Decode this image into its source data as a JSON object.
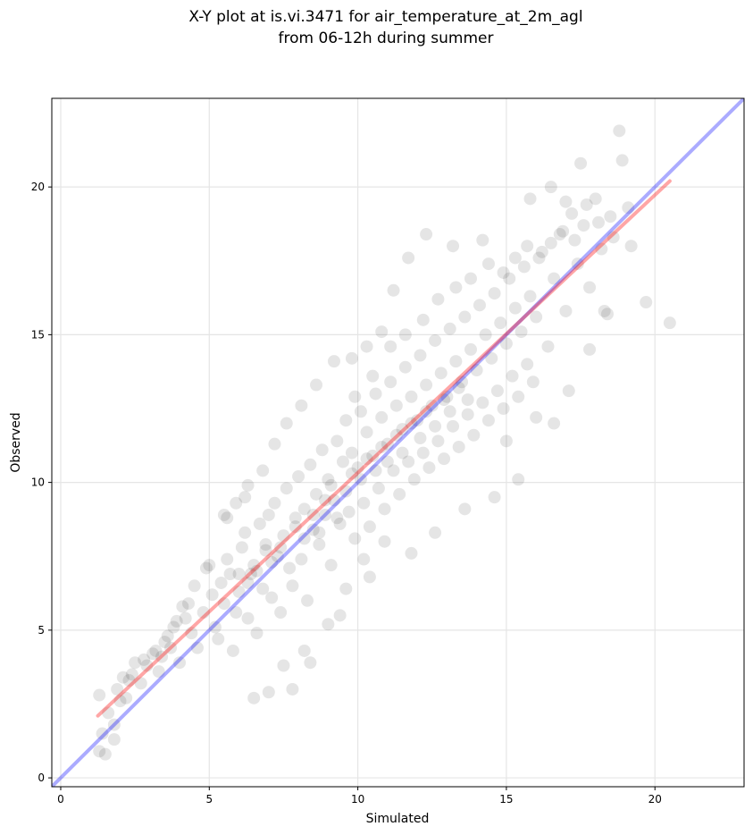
{
  "chart_data": {
    "type": "scatter",
    "title": [
      "X-Y plot at is.vi.3471 for air_temperature_at_2m_agl",
      "from 06-12h during summer"
    ],
    "xlabel": "Simulated",
    "ylabel": "Observed",
    "xlim": [
      -0.3,
      23.0
    ],
    "ylim": [
      -0.3,
      23.0
    ],
    "xticks": [
      0,
      5,
      10,
      15,
      20
    ],
    "yticks": [
      0,
      5,
      10,
      15,
      20
    ],
    "grid": true,
    "legend": "none",
    "point_color": "#000000",
    "point_opacity": 0.1,
    "points": [
      [
        1.3,
        0.9
      ],
      [
        1.4,
        1.5
      ],
      [
        1.5,
        0.8
      ],
      [
        1.8,
        1.3
      ],
      [
        1.3,
        2.8
      ],
      [
        1.6,
        2.2
      ],
      [
        1.9,
        3.0
      ],
      [
        2.2,
        2.7
      ],
      [
        2.3,
        3.3
      ],
      [
        2.5,
        3.9
      ],
      [
        2.4,
        3.5
      ],
      [
        2.7,
        3.2
      ],
      [
        2.9,
        3.8
      ],
      [
        3.1,
        4.2
      ],
      [
        3.3,
        3.6
      ],
      [
        3.5,
        4.6
      ],
      [
        3.4,
        4.1
      ],
      [
        3.7,
        4.4
      ],
      [
        3.9,
        5.3
      ],
      [
        4.0,
        3.9
      ],
      [
        4.1,
        5.8
      ],
      [
        4.2,
        5.4
      ],
      [
        4.4,
        4.9
      ],
      [
        4.6,
        4.4
      ],
      [
        4.8,
        5.6
      ],
      [
        5.0,
        7.2
      ],
      [
        5.1,
        6.2
      ],
      [
        5.2,
        5.1
      ],
      [
        5.3,
        4.7
      ],
      [
        5.4,
        6.6
      ],
      [
        5.5,
        5.9
      ],
      [
        5.6,
        7.4
      ],
      [
        5.7,
        6.9
      ],
      [
        5.8,
        4.3
      ],
      [
        5.9,
        5.6
      ],
      [
        6.0,
        6.3
      ],
      [
        6.1,
        7.8
      ],
      [
        6.2,
        8.3
      ],
      [
        6.3,
        5.4
      ],
      [
        6.4,
        6.9
      ],
      [
        6.5,
        7.2
      ],
      [
        6.6,
        4.9
      ],
      [
        6.7,
        8.6
      ],
      [
        6.8,
        6.4
      ],
      [
        6.9,
        7.7
      ],
      [
        7.0,
        8.9
      ],
      [
        7.1,
        6.1
      ],
      [
        7.2,
        9.3
      ],
      [
        7.3,
        7.5
      ],
      [
        7.4,
        5.6
      ],
      [
        7.5,
        8.2
      ],
      [
        7.6,
        9.8
      ],
      [
        7.7,
        7.1
      ],
      [
        7.8,
        6.5
      ],
      [
        7.9,
        8.8
      ],
      [
        8.0,
        10.2
      ],
      [
        8.1,
        7.4
      ],
      [
        8.2,
        9.1
      ],
      [
        8.3,
        6.0
      ],
      [
        8.4,
        10.6
      ],
      [
        8.5,
        8.4
      ],
      [
        8.6,
        9.6
      ],
      [
        8.7,
        7.9
      ],
      [
        8.8,
        11.1
      ],
      [
        8.9,
        8.9
      ],
      [
        9.0,
        10.1
      ],
      [
        9.1,
        7.2
      ],
      [
        9.2,
        9.4
      ],
      [
        9.3,
        11.4
      ],
      [
        9.4,
        8.6
      ],
      [
        9.5,
        10.7
      ],
      [
        9.6,
        12.1
      ],
      [
        9.7,
        9.0
      ],
      [
        9.8,
        11.0
      ],
      [
        9.9,
        8.1
      ],
      [
        10.0,
        10.5
      ],
      [
        10.1,
        12.4
      ],
      [
        10.2,
        9.3
      ],
      [
        10.3,
        11.7
      ],
      [
        10.4,
        8.5
      ],
      [
        10.5,
        10.9
      ],
      [
        10.6,
        13.0
      ],
      [
        10.7,
        9.8
      ],
      [
        10.8,
        12.2
      ],
      [
        10.9,
        9.1
      ],
      [
        11.0,
        11.3
      ],
      [
        11.1,
        13.4
      ],
      [
        11.2,
        10.4
      ],
      [
        11.3,
        12.6
      ],
      [
        11.4,
        9.6
      ],
      [
        11.5,
        11.8
      ],
      [
        11.6,
        13.9
      ],
      [
        11.7,
        10.7
      ],
      [
        11.8,
        12.9
      ],
      [
        11.9,
        10.1
      ],
      [
        12.0,
        12.1
      ],
      [
        12.1,
        14.3
      ],
      [
        12.2,
        11.0
      ],
      [
        12.3,
        13.3
      ],
      [
        12.4,
        10.5
      ],
      [
        12.5,
        12.6
      ],
      [
        12.6,
        14.8
      ],
      [
        12.7,
        11.4
      ],
      [
        12.8,
        13.7
      ],
      [
        12.9,
        10.8
      ],
      [
        13.0,
        12.9
      ],
      [
        13.1,
        15.2
      ],
      [
        13.2,
        11.9
      ],
      [
        13.3,
        14.1
      ],
      [
        13.4,
        11.2
      ],
      [
        13.5,
        13.4
      ],
      [
        13.6,
        15.6
      ],
      [
        13.7,
        12.3
      ],
      [
        13.8,
        14.5
      ],
      [
        13.9,
        11.6
      ],
      [
        14.0,
        13.8
      ],
      [
        14.1,
        16.0
      ],
      [
        14.2,
        12.7
      ],
      [
        14.3,
        15.0
      ],
      [
        14.4,
        12.1
      ],
      [
        14.5,
        14.2
      ],
      [
        14.6,
        16.4
      ],
      [
        14.7,
        13.1
      ],
      [
        14.8,
        15.4
      ],
      [
        14.9,
        12.5
      ],
      [
        15.0,
        14.7
      ],
      [
        15.1,
        16.9
      ],
      [
        15.2,
        13.6
      ],
      [
        15.3,
        15.9
      ],
      [
        15.4,
        12.9
      ],
      [
        15.5,
        15.1
      ],
      [
        15.6,
        17.3
      ],
      [
        15.7,
        14.0
      ],
      [
        15.8,
        16.3
      ],
      [
        15.9,
        13.4
      ],
      [
        16.0,
        15.6
      ],
      [
        16.2,
        17.8
      ],
      [
        16.4,
        14.6
      ],
      [
        16.6,
        16.9
      ],
      [
        16.8,
        18.4
      ],
      [
        17.0,
        15.8
      ],
      [
        17.2,
        19.1
      ],
      [
        17.4,
        17.4
      ],
      [
        17.6,
        18.7
      ],
      [
        17.8,
        16.6
      ],
      [
        18.0,
        19.6
      ],
      [
        18.2,
        17.9
      ],
      [
        18.4,
        15.7
      ],
      [
        18.6,
        18.3
      ],
      [
        18.8,
        21.9
      ],
      [
        18.9,
        20.9
      ],
      [
        19.2,
        18.0
      ],
      [
        19.7,
        16.1
      ],
      [
        20.5,
        15.4
      ],
      [
        17.5,
        20.8
      ],
      [
        17.0,
        19.5
      ],
      [
        16.5,
        20.0
      ],
      [
        15.8,
        19.6
      ],
      [
        14.2,
        18.2
      ],
      [
        13.2,
        18.0
      ],
      [
        12.3,
        18.4
      ],
      [
        11.7,
        17.6
      ],
      [
        11.2,
        16.5
      ],
      [
        10.8,
        15.1
      ],
      [
        10.3,
        14.6
      ],
      [
        9.8,
        14.2
      ],
      [
        9.2,
        14.1
      ],
      [
        8.6,
        13.3
      ],
      [
        8.1,
        12.6
      ],
      [
        7.6,
        12.0
      ],
      [
        7.2,
        11.3
      ],
      [
        6.8,
        10.4
      ],
      [
        6.3,
        9.9
      ],
      [
        5.9,
        9.3
      ],
      [
        5.5,
        8.9
      ],
      [
        11.8,
        7.6
      ],
      [
        10.9,
        8.0
      ],
      [
        10.2,
        7.4
      ],
      [
        9.6,
        6.4
      ],
      [
        9.0,
        5.2
      ],
      [
        8.2,
        4.3
      ],
      [
        7.5,
        3.8
      ],
      [
        7.0,
        2.9
      ],
      [
        6.5,
        2.7
      ],
      [
        7.8,
        3.0
      ],
      [
        8.4,
        3.9
      ],
      [
        9.4,
        5.5
      ],
      [
        10.4,
        6.8
      ],
      [
        12.6,
        8.3
      ],
      [
        13.6,
        9.1
      ],
      [
        14.6,
        9.5
      ],
      [
        15.4,
        10.1
      ],
      [
        15.0,
        11.4
      ],
      [
        16.0,
        12.2
      ],
      [
        16.6,
        12.0
      ],
      [
        17.1,
        13.1
      ],
      [
        17.8,
        14.5
      ],
      [
        18.3,
        15.8
      ],
      [
        6.2,
        9.5
      ],
      [
        5.6,
        8.8
      ],
      [
        4.9,
        7.1
      ],
      [
        4.5,
        6.5
      ],
      [
        4.3,
        5.9
      ],
      [
        3.8,
        5.1
      ],
      [
        3.6,
        4.8
      ],
      [
        3.2,
        4.3
      ],
      [
        2.8,
        4.0
      ],
      [
        2.1,
        3.4
      ],
      [
        2.0,
        2.6
      ],
      [
        1.8,
        1.8
      ],
      [
        8.9,
        9.4
      ],
      [
        9.1,
        9.9
      ],
      [
        9.3,
        8.8
      ],
      [
        9.6,
        9.7
      ],
      [
        9.8,
        10.3
      ],
      [
        10.1,
        10.1
      ],
      [
        10.3,
        10.8
      ],
      [
        10.6,
        10.4
      ],
      [
        10.8,
        11.2
      ],
      [
        11.0,
        10.7
      ],
      [
        11.3,
        11.6
      ],
      [
        11.5,
        11.0
      ],
      [
        11.8,
        12.0
      ],
      [
        12.1,
        11.5
      ],
      [
        12.3,
        12.4
      ],
      [
        12.6,
        11.9
      ],
      [
        12.9,
        12.8
      ],
      [
        13.1,
        12.4
      ],
      [
        13.4,
        13.2
      ],
      [
        13.7,
        12.8
      ],
      [
        7.9,
        8.5
      ],
      [
        8.2,
        8.1
      ],
      [
        8.5,
        8.9
      ],
      [
        8.7,
        8.3
      ],
      [
        7.4,
        7.8
      ],
      [
        7.1,
        7.3
      ],
      [
        6.9,
        7.9
      ],
      [
        6.6,
        7.0
      ],
      [
        6.3,
        6.6
      ],
      [
        6.0,
        6.9
      ],
      [
        9.9,
        12.9
      ],
      [
        10.5,
        13.6
      ],
      [
        11.1,
        14.6
      ],
      [
        11.6,
        15.0
      ],
      [
        12.2,
        15.5
      ],
      [
        12.7,
        16.2
      ],
      [
        13.3,
        16.6
      ],
      [
        13.8,
        16.9
      ],
      [
        14.4,
        17.4
      ],
      [
        14.9,
        17.1
      ],
      [
        15.3,
        17.6
      ],
      [
        15.7,
        18.0
      ],
      [
        16.1,
        17.6
      ],
      [
        16.5,
        18.1
      ],
      [
        16.9,
        18.5
      ],
      [
        17.3,
        18.2
      ],
      [
        17.7,
        19.4
      ],
      [
        18.1,
        18.8
      ],
      [
        18.5,
        19.0
      ],
      [
        19.1,
        19.3
      ]
    ],
    "lines": [
      {
        "name": "",
        "color": "#0000ff",
        "opacity": 0.33,
        "x": [
          -0.3,
          23.0
        ],
        "y": [
          -0.3,
          23.0
        ]
      },
      {
        "name": "",
        "color": "#ff0000",
        "opacity": 0.35,
        "x": [
          1.25,
          20.5
        ],
        "y": [
          2.1,
          20.2
        ]
      }
    ]
  }
}
